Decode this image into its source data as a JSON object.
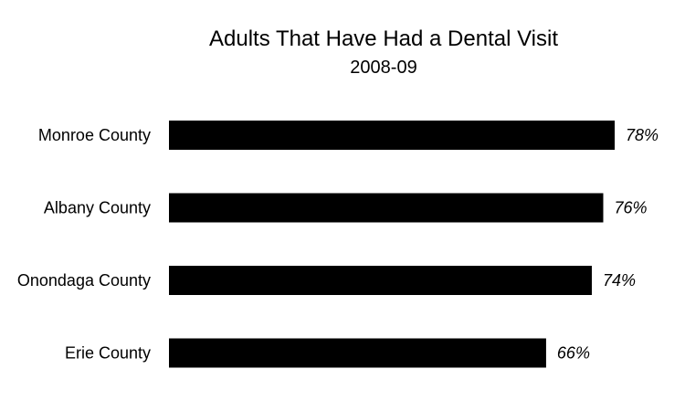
{
  "chart_data": {
    "type": "bar",
    "orientation": "horizontal",
    "title": "Adults That Have Had a Dental Visit",
    "subtitle": "2008-09",
    "categories": [
      "Monroe County",
      "Albany County",
      "Onondaga County",
      "Erie County"
    ],
    "values": [
      78,
      76,
      74,
      66
    ],
    "value_labels": [
      "78%",
      "76%",
      "74%",
      "66%"
    ],
    "xlim": [
      0,
      78
    ],
    "grid": false,
    "legend": "none",
    "bar_color": "#000000"
  }
}
